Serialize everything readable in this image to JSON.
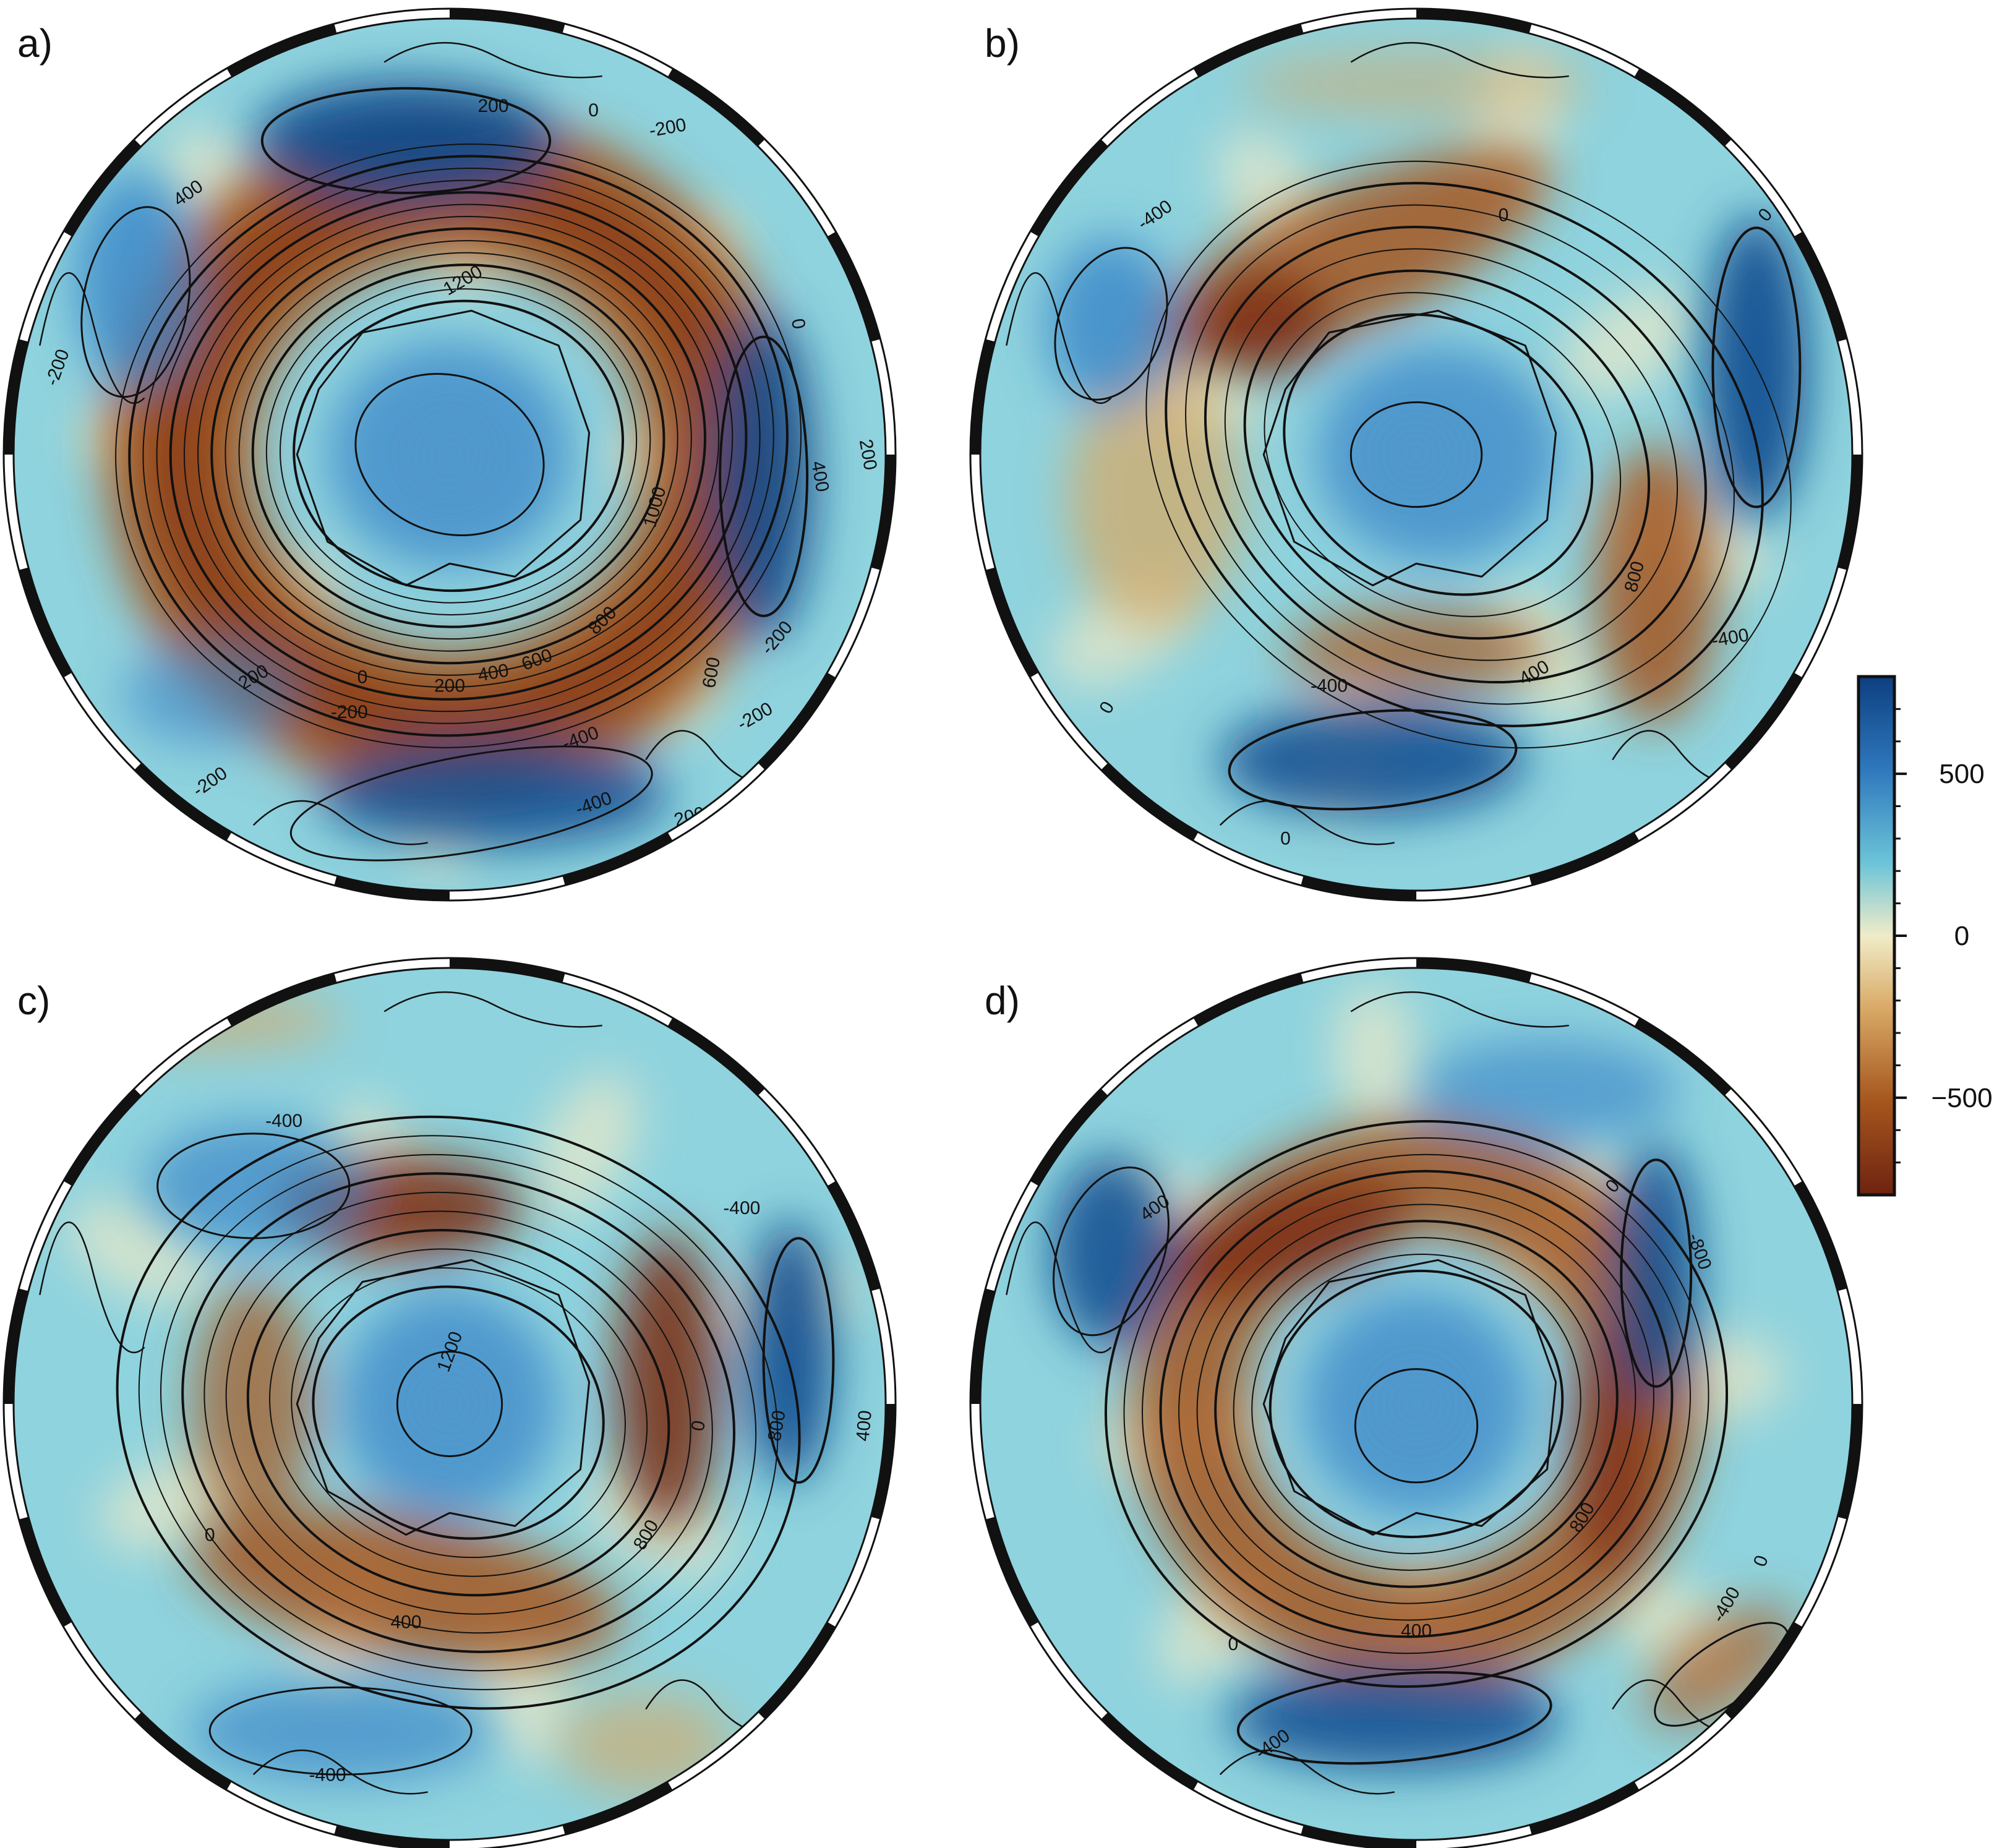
{
  "colors": {
    "blue_dark": "#0d4a8f",
    "blue": "#3a86c8",
    "cyan": "#8fd3de",
    "pale": "#eee9c8",
    "tan": "#d8a660",
    "brown": "#a5561d",
    "brown_dark": "#7a2a10",
    "contour": "#111111",
    "land": "#111111"
  },
  "panels": [
    {
      "id": "a",
      "label": "a)",
      "contour_labels": [
        "200",
        "0",
        "-200",
        "1200",
        "400",
        "-200",
        "0",
        "200",
        "400",
        "1000",
        "600",
        "800",
        "600",
        "400",
        "200",
        "0",
        "-200",
        "-200",
        "200",
        "-400",
        "-200",
        "-400",
        "200",
        "-200"
      ]
    },
    {
      "id": "b",
      "label": "b)",
      "contour_labels": [
        "-400",
        "0",
        "0",
        "800",
        "400",
        "-400",
        "0",
        "0",
        "-400"
      ]
    },
    {
      "id": "c",
      "label": "c)",
      "contour_labels": [
        "-400",
        "-400",
        "1200",
        "0",
        "800",
        "400",
        "0",
        "400",
        "800",
        "-400"
      ]
    },
    {
      "id": "d",
      "label": "d)",
      "contour_labels": [
        "400",
        "0",
        "-800",
        "800",
        "400",
        "0",
        "-400",
        "0",
        "400",
        "-400"
      ]
    }
  ],
  "colorbar": {
    "min": -800,
    "max": 800,
    "tick_labels": [
      "500",
      "0",
      "−500"
    ],
    "tick_values": [
      500,
      0,
      -500
    ]
  }
}
